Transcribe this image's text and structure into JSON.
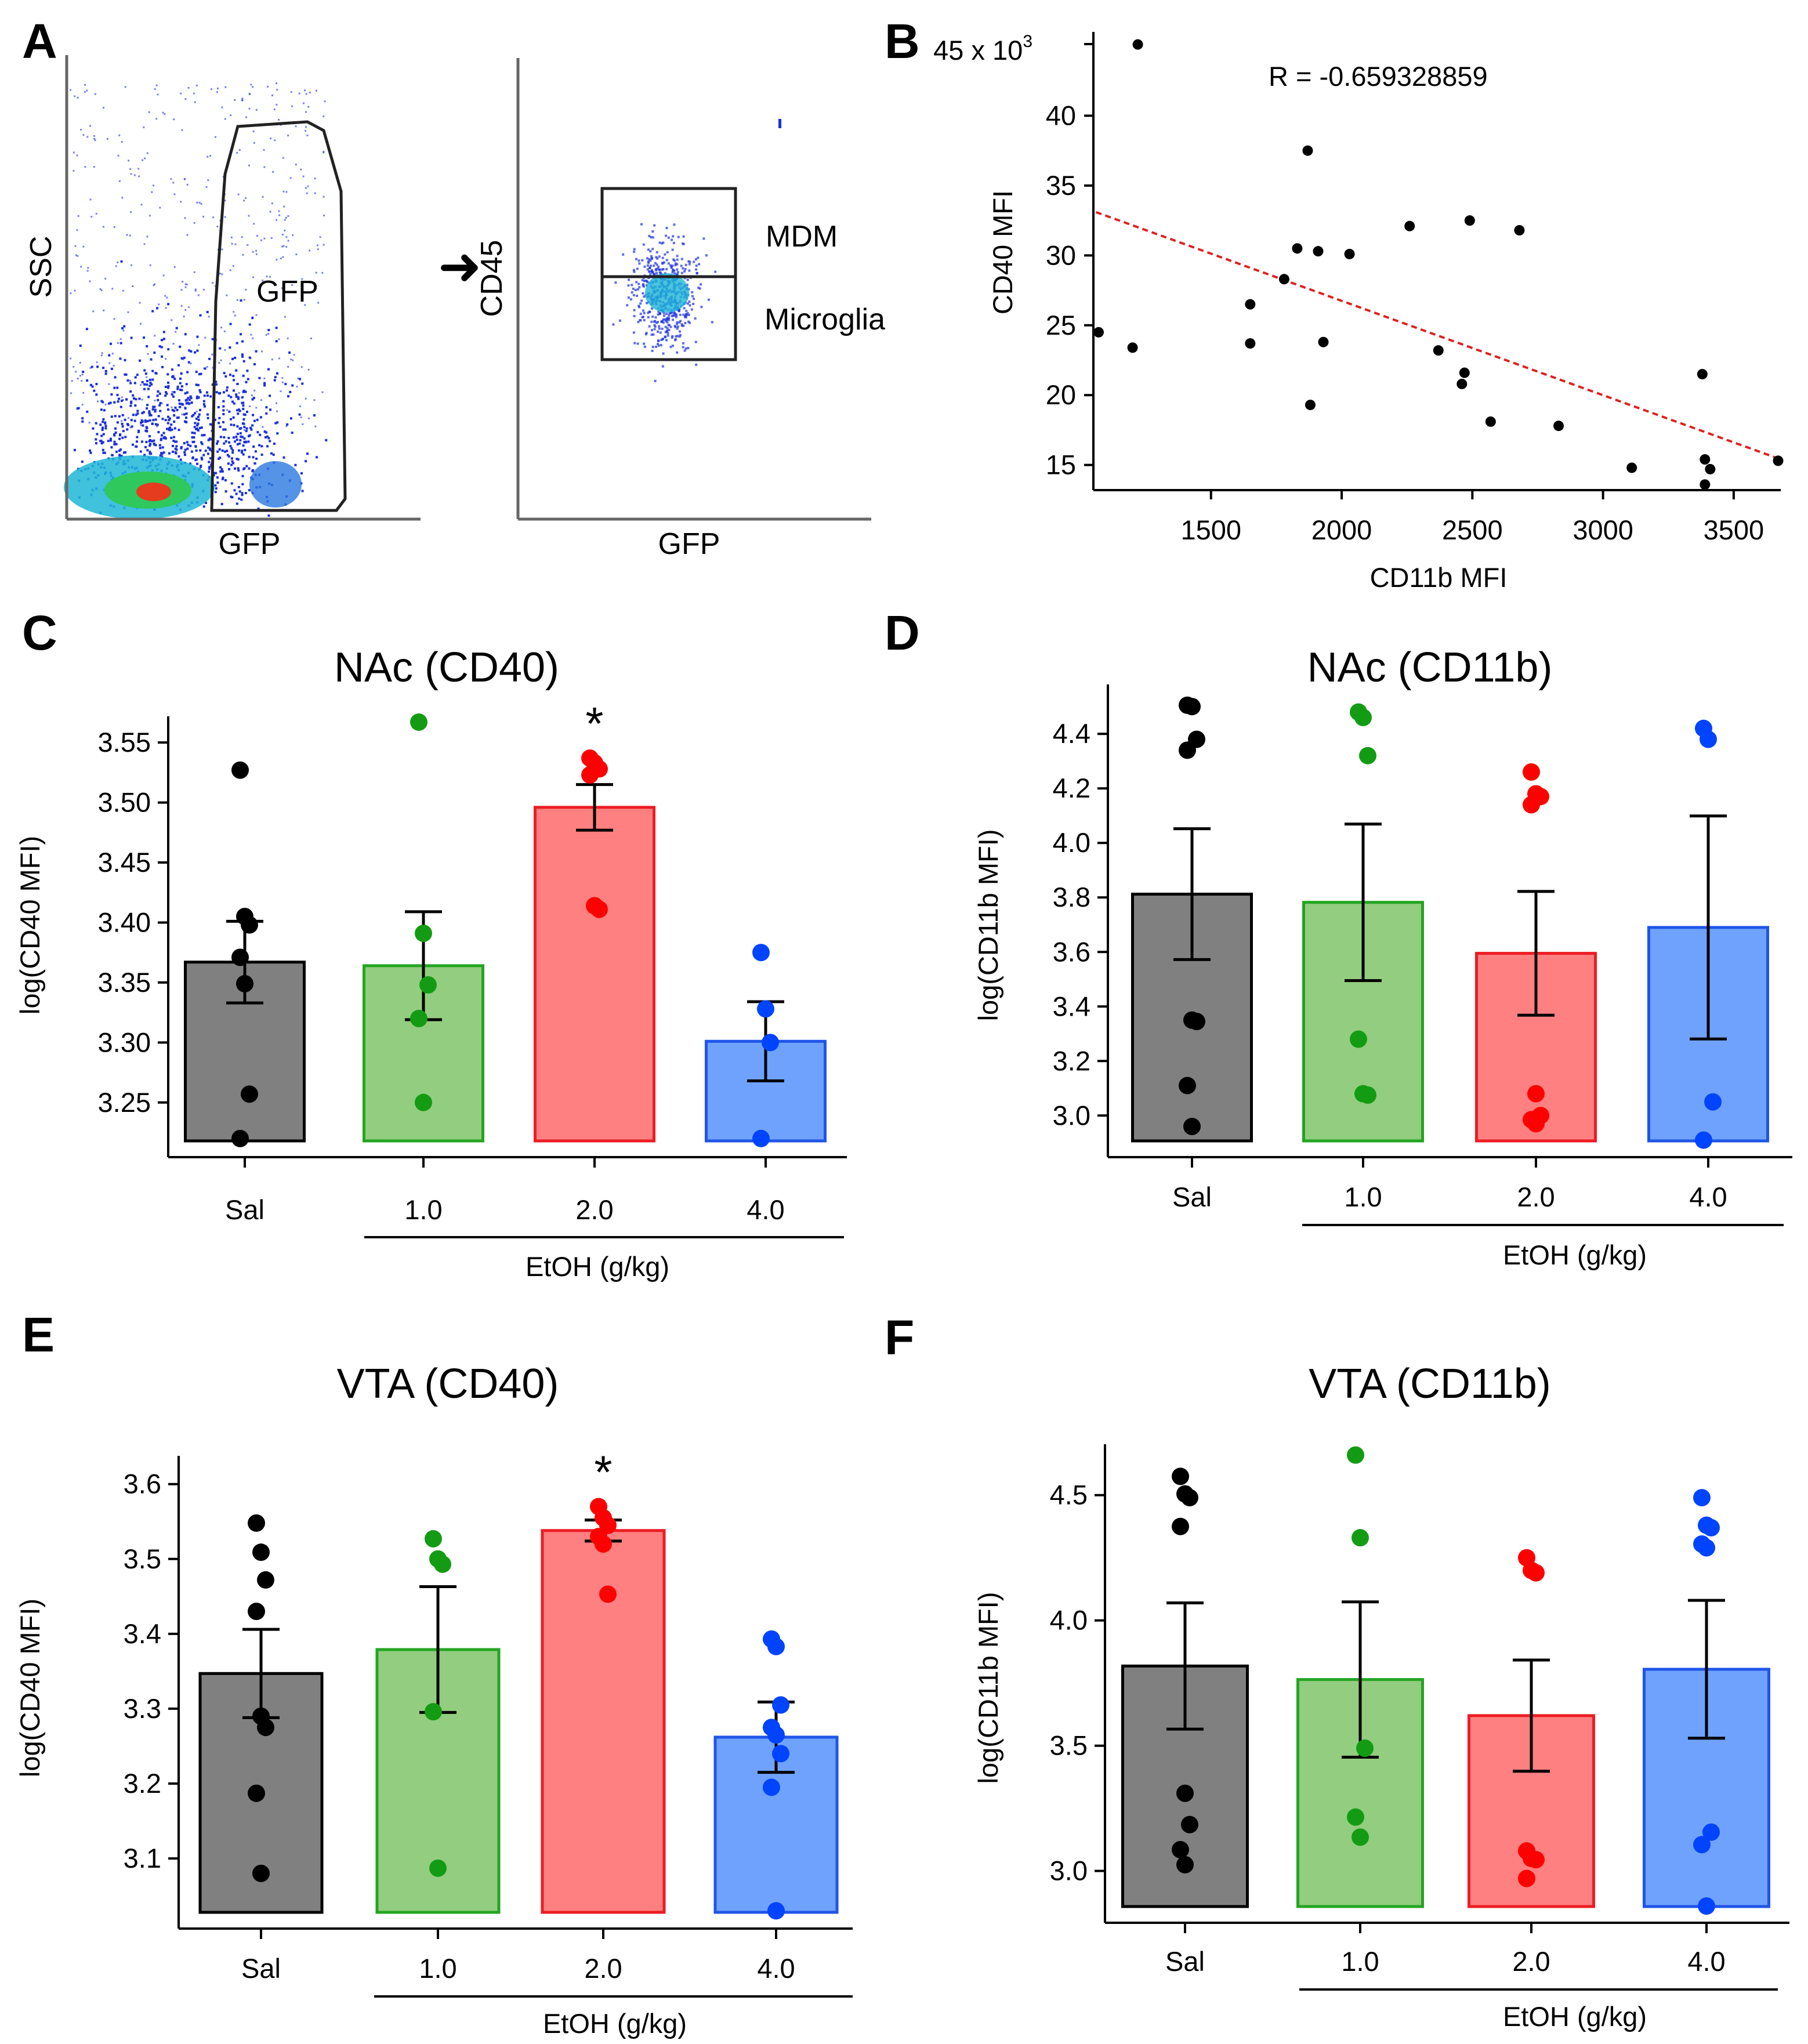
{
  "figure": {
    "panels": {
      "A": "A",
      "B": "B",
      "C": "C",
      "D": "D",
      "E": "E",
      "F": "F"
    }
  },
  "flow": {
    "left_plot": {
      "y_label": "SSC",
      "x_label": "GFP",
      "gate_label": "GFP"
    },
    "right_plot": {
      "y_label": "CD45",
      "x_label": "GFP",
      "gate_upper": "MDM",
      "gate_lower": "Microglia"
    },
    "arrow": "➜",
    "colors": {
      "density_high": "#e53b1e",
      "density_mid": "#2ec85c",
      "density_low": "#1a2fe0",
      "gate": "#222222"
    }
  },
  "chart_data": [
    {
      "panel": "B",
      "type": "scatter",
      "title": "",
      "xlabel": "CD11b MFI",
      "ylabel": "CD40 MFI",
      "y_scale_label": "45 x 10",
      "y_scale_exponent": "3",
      "annotation": "R = -0.659328859",
      "xlim": [
        1050,
        3680
      ],
      "ylim": [
        13.2,
        46
      ],
      "x_ticks": [
        "1500",
        "2000",
        "2500",
        "3000",
        "3500"
      ],
      "x_tick_values": [
        1500,
        2000,
        2500,
        3000,
        3500
      ],
      "y_ticks": [
        "15",
        "20",
        "25",
        "30",
        "35",
        "40"
      ],
      "y_tick_values": [
        15,
        20,
        25,
        30,
        35,
        40
      ],
      "points": [
        [
          1070,
          24.5
        ],
        [
          1200,
          23.4
        ],
        [
          1220,
          45.1
        ],
        [
          1650,
          26.5
        ],
        [
          1650,
          23.7
        ],
        [
          1780,
          28.3
        ],
        [
          1830,
          30.5
        ],
        [
          1870,
          37.5
        ],
        [
          1880,
          19.3
        ],
        [
          1910,
          30.3
        ],
        [
          1930,
          23.8
        ],
        [
          2030,
          30.1
        ],
        [
          2260,
          32.1
        ],
        [
          2370,
          23.2
        ],
        [
          2460,
          20.8
        ],
        [
          2470,
          21.6
        ],
        [
          2490,
          32.5
        ],
        [
          2570,
          18.1
        ],
        [
          2680,
          31.8
        ],
        [
          2830,
          17.8
        ],
        [
          3110,
          14.8
        ],
        [
          3380,
          21.5
        ],
        [
          3390,
          15.4
        ],
        [
          3390,
          13.6
        ],
        [
          3410,
          14.7
        ],
        [
          3670,
          15.3
        ]
      ],
      "trend_line": {
        "x": [
          1060,
          3680
        ],
        "y": [
          33.1,
          15.4
        ]
      },
      "point_color": "#000000",
      "trend_color": "#e02020"
    },
    {
      "panel": "C",
      "type": "bar",
      "title": "NAc (CD40)",
      "xlabel": "EtOH (g/kg)",
      "ylabel": "log(CD40 MFI)",
      "categories": [
        "Sal",
        "1.0",
        "2.0",
        "4.0"
      ],
      "values": [
        3.367,
        3.364,
        3.496,
        3.301
      ],
      "sem": [
        0.034,
        0.045,
        0.019,
        0.033
      ],
      "points": [
        [
          3.527,
          3.405,
          3.398,
          3.371,
          3.349,
          3.257,
          3.22
        ],
        [
          3.567,
          3.391,
          3.348,
          3.32,
          3.25
        ],
        [
          3.537,
          3.533,
          3.528,
          3.523,
          3.414,
          3.411
        ],
        [
          3.375,
          3.328,
          3.3,
          3.22
        ]
      ],
      "significant": [
        false,
        false,
        true,
        false
      ],
      "sig_marker": "*",
      "ylim": [
        3.218,
        3.567
      ],
      "y_ticks": [
        "3.25",
        "3.30",
        "3.35",
        "3.40",
        "3.45",
        "3.50",
        "3.55"
      ],
      "y_tick_values": [
        3.25,
        3.3,
        3.35,
        3.4,
        3.45,
        3.5,
        3.55
      ]
    },
    {
      "panel": "D",
      "type": "bar",
      "title": "NAc (CD11b)",
      "xlabel": "EtOH (g/kg)",
      "ylabel": "log(CD11b MFI)",
      "categories": [
        "Sal",
        "1.0",
        "2.0",
        "4.0"
      ],
      "values": [
        3.812,
        3.782,
        3.595,
        3.69
      ],
      "sem": [
        0.24,
        0.287,
        0.227,
        0.409
      ],
      "points": [
        [
          4.505,
          4.5,
          4.38,
          4.34,
          3.35,
          3.345,
          3.11,
          2.96
        ],
        [
          4.48,
          4.46,
          4.32,
          3.28,
          3.08,
          3.075
        ],
        [
          4.26,
          4.18,
          4.17,
          4.14,
          3.08,
          3.0,
          2.985,
          2.97
        ],
        [
          4.42,
          4.38,
          3.05,
          2.91
        ]
      ],
      "significant": [
        false,
        false,
        false,
        false
      ],
      "sig_marker": "",
      "ylim": [
        2.907,
        4.56
      ],
      "y_ticks": [
        "3.0",
        "3.2",
        "3.4",
        "3.6",
        "3.8",
        "4.0",
        "4.2",
        "4.4"
      ],
      "y_tick_values": [
        3.0,
        3.2,
        3.4,
        3.6,
        3.8,
        4.0,
        4.2,
        4.4
      ]
    },
    {
      "panel": "E",
      "type": "bar",
      "title": "VTA (CD40)",
      "xlabel": "EtOH (g/kg)",
      "ylabel": "log(CD40 MFI)",
      "categories": [
        "Sal",
        "1.0",
        "2.0",
        "4.0"
      ],
      "values": [
        3.347,
        3.379,
        3.538,
        3.262
      ],
      "sem": [
        0.059,
        0.084,
        0.014,
        0.047
      ],
      "points": [
        [
          3.548,
          3.509,
          3.472,
          3.43,
          3.29,
          3.275,
          3.187,
          3.08
        ],
        [
          3.527,
          3.5,
          3.493,
          3.296,
          3.087
        ],
        [
          3.57,
          3.555,
          3.545,
          3.53,
          3.52,
          3.453
        ],
        [
          3.393,
          3.383,
          3.305,
          3.275,
          3.265,
          3.24,
          3.195,
          3.03
        ]
      ],
      "significant": [
        false,
        false,
        true,
        false
      ],
      "sig_marker": "*",
      "ylim": [
        3.028,
        3.63
      ],
      "y_ticks": [
        "3.1",
        "3.2",
        "3.3",
        "3.4",
        "3.5",
        "3.6"
      ],
      "y_tick_values": [
        3.1,
        3.2,
        3.3,
        3.4,
        3.5,
        3.6
      ]
    },
    {
      "panel": "F",
      "type": "bar",
      "title": "VTA (CD11b)",
      "xlabel": "EtOH (g/kg)",
      "ylabel": "log(CD11b MFI)",
      "categories": [
        "Sal",
        "1.0",
        "2.0",
        "4.0"
      ],
      "values": [
        3.818,
        3.764,
        3.62,
        3.805
      ],
      "sem": [
        0.252,
        0.31,
        0.222,
        0.275
      ],
      "points": [
        [
          4.575,
          4.505,
          4.49,
          4.375,
          3.31,
          3.185,
          3.085,
          3.025
        ],
        [
          4.66,
          4.33,
          3.49,
          3.215,
          3.135
        ],
        [
          4.25,
          4.2,
          4.19,
          3.08,
          3.05,
          3.045,
          2.97
        ],
        [
          4.49,
          4.38,
          4.37,
          4.305,
          4.29,
          3.155,
          3.105,
          2.86
        ]
      ],
      "significant": [
        false,
        false,
        false,
        false
      ],
      "sig_marker": "",
      "ylim": [
        2.858,
        4.68
      ],
      "y_ticks": [
        "3.0",
        "3.5",
        "4.0",
        "4.5"
      ],
      "y_tick_values": [
        3.0,
        3.5,
        4.0,
        4.5
      ]
    }
  ],
  "palette": {
    "bar_fills": [
      "#808080",
      "#93cd7f",
      "#fe8080",
      "#6fa2fd"
    ],
    "bar_strokes": [
      "#000000",
      "#23a521",
      "#ed1c24",
      "#1f55e8"
    ],
    "dot_colors": [
      "#000000",
      "#139c13",
      "#fe0000",
      "#0044ff"
    ]
  }
}
